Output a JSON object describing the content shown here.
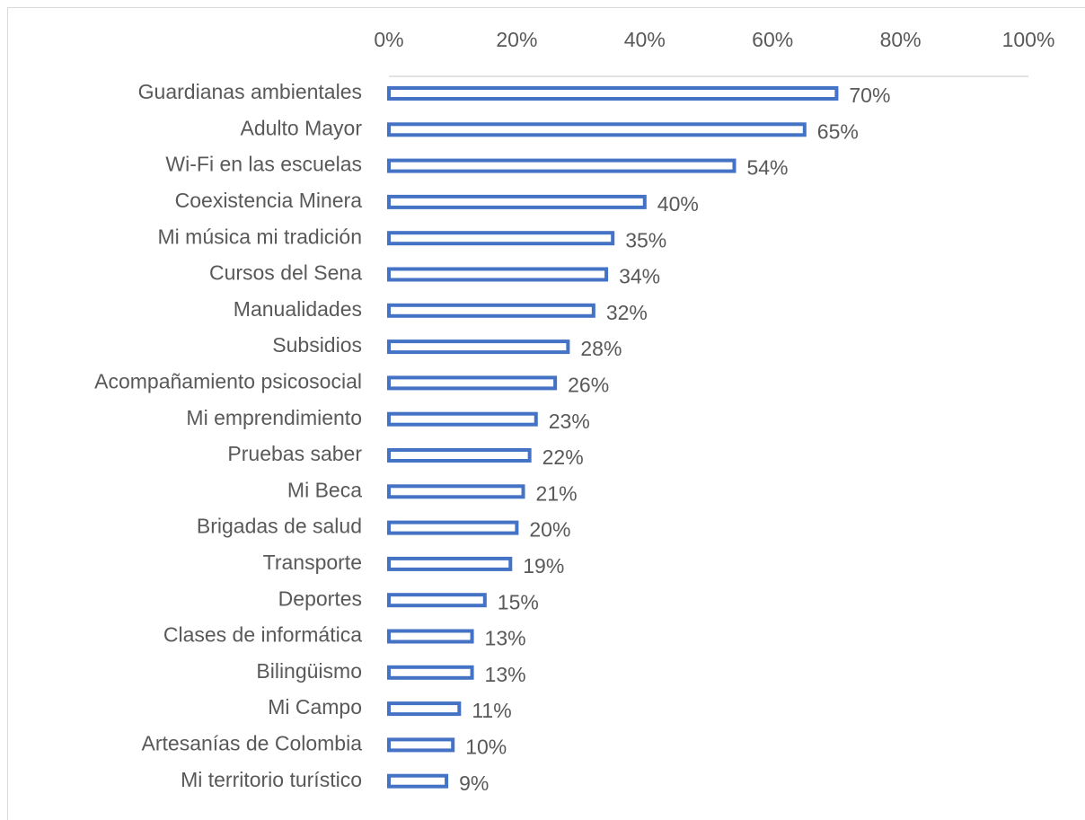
{
  "chart_data": {
    "type": "bar",
    "orientation": "horizontal",
    "categories": [
      "Guardianas ambientales",
      "Adulto Mayor",
      "Wi-Fi en las escuelas",
      "Coexistencia Minera",
      "Mi música mi tradición",
      "Cursos del Sena",
      "Manualidades",
      "Subsidios",
      "Acompañamiento psicosocial",
      "Mi emprendimiento",
      "Pruebas saber",
      "Mi Beca",
      "Brigadas de salud",
      "Transporte",
      "Deportes",
      "Clases de informática",
      "Bilingüismo",
      "Mi Campo",
      "Artesanías de Colombia",
      "Mi territorio turístico"
    ],
    "values": [
      70,
      65,
      54,
      40,
      35,
      34,
      32,
      28,
      26,
      23,
      22,
      21,
      20,
      19,
      15,
      13,
      13,
      11,
      10,
      9
    ],
    "value_labels": [
      "70%",
      "65%",
      "54%",
      "40%",
      "35%",
      "34%",
      "32%",
      "28%",
      "26%",
      "23%",
      "22%",
      "21%",
      "20%",
      "19%",
      "15%",
      "13%",
      "13%",
      "11%",
      "10%",
      "9%"
    ],
    "color": "#4472c4",
    "xlim": [
      0,
      100
    ],
    "xticks": [
      {
        "value": 0,
        "label": "0%"
      },
      {
        "value": 20,
        "label": "20%"
      },
      {
        "value": 40,
        "label": "40%"
      },
      {
        "value": 60,
        "label": "60%"
      },
      {
        "value": 80,
        "label": "80%"
      },
      {
        "value": 100,
        "label": "100%"
      }
    ],
    "grid": false
  }
}
